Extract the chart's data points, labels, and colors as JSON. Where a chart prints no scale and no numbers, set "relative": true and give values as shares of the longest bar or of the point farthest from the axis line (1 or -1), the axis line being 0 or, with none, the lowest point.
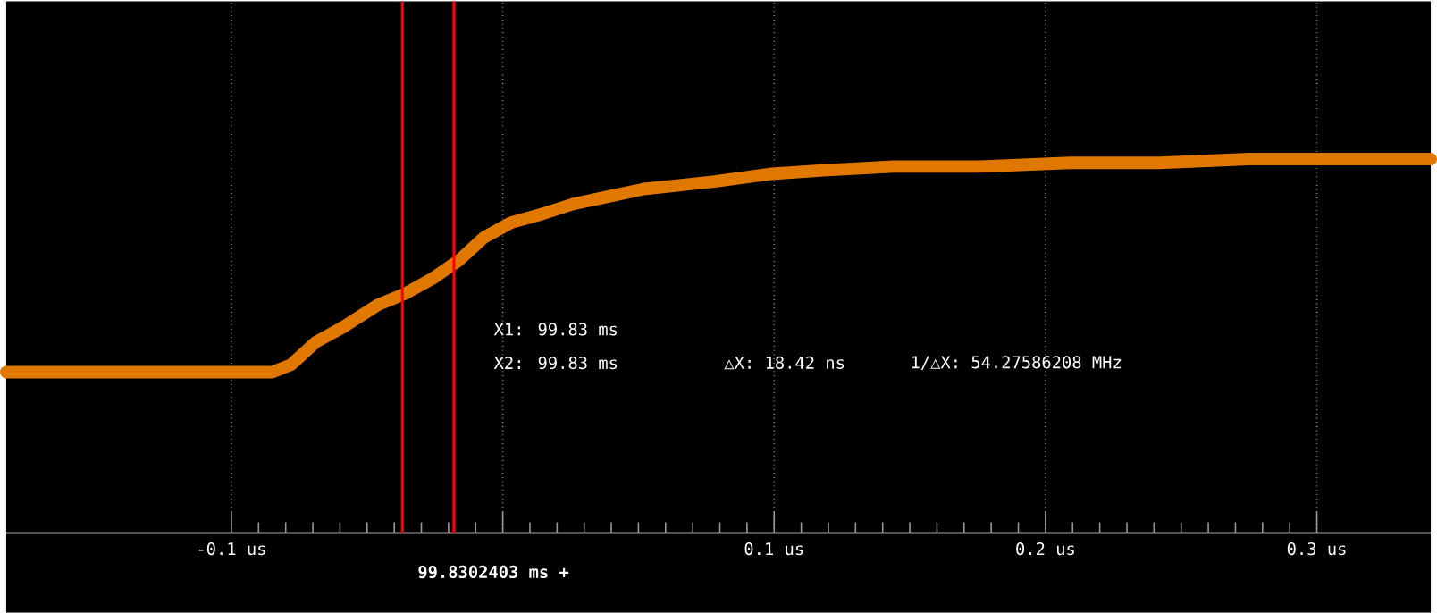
{
  "chart_data": {
    "type": "line",
    "relative": true,
    "x": [
      -0.183,
      -0.118,
      -0.085,
      -0.078,
      -0.069,
      -0.059,
      -0.046,
      -0.036,
      -0.026,
      -0.016,
      -0.007,
      0.003,
      0.013,
      0.026,
      0.039,
      0.052,
      0.065,
      0.078,
      0.098,
      0.118,
      0.144,
      0.176,
      0.209,
      0.242,
      0.275,
      0.307,
      0.342
    ],
    "series": [
      {
        "color": "#e07800",
        "values": [
          0.43,
          0.43,
          0.43,
          0.45,
          0.51,
          0.55,
          0.61,
          0.64,
          0.68,
          0.73,
          0.79,
          0.83,
          0.85,
          0.88,
          0.9,
          0.92,
          0.93,
          0.94,
          0.96,
          0.97,
          0.98,
          0.98,
          0.99,
          0.99,
          1,
          1,
          1
        ]
      }
    ],
    "xlim": [
      -0.183,
      0.342
    ],
    "xticks": [
      {
        "value": -0.1,
        "label": "-0.1 us"
      },
      {
        "value": 0,
        "label": null
      },
      {
        "value": 0.1,
        "label": "0.1 us"
      },
      {
        "value": 0.2,
        "label": "0.2 us"
      },
      {
        "value": 0.3,
        "label": "0.3 us"
      }
    ],
    "grid": true,
    "marker": "none",
    "line_style": "solid",
    "ref_lines": [
      {
        "axis": "x",
        "value": -0.037,
        "color": "#ff0000"
      },
      {
        "axis": "x",
        "value": -0.018,
        "color": "#ff0000"
      }
    ],
    "annotations": [
      "99.8302403 ms +",
      "X1: 99.83 ms",
      "X2: 99.83 ms",
      "△X: 18.42 ns",
      "1/△X: 54.27586208 MHz"
    ]
  }
}
